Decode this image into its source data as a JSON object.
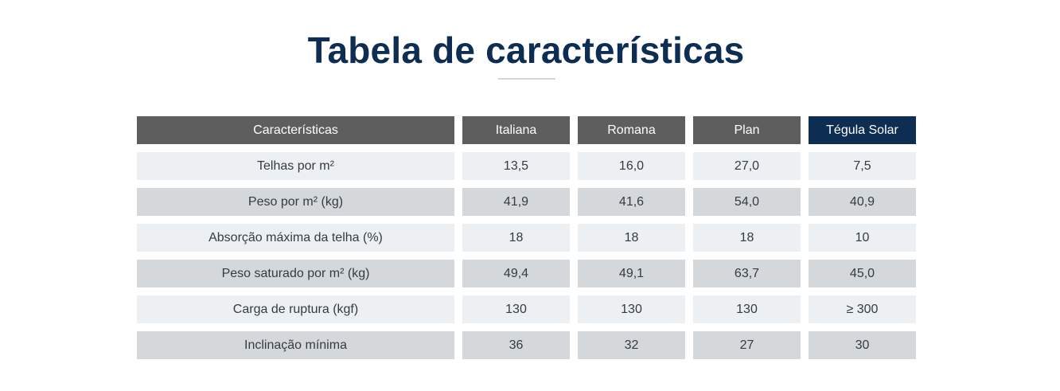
{
  "page": {
    "title": "Tabela de características"
  },
  "table": {
    "columns": [
      "Características",
      "Italiana",
      "Romana",
      "Plan",
      "Tégula Solar"
    ],
    "rows": [
      [
        "Telhas por m²",
        "13,5",
        "16,0",
        "27,0",
        "7,5"
      ],
      [
        "Peso por m² (kg)",
        "41,9",
        "41,6",
        "54,0",
        "40,9"
      ],
      [
        "Absorção máxima da telha (%)",
        "18",
        "18",
        "18",
        "10"
      ],
      [
        "Peso saturado por m² (kg)",
        "49,4",
        "49,1",
        "63,7",
        "45,0"
      ],
      [
        "Carga de ruptura (kgf)",
        "130",
        "130",
        "130",
        "≥ 300"
      ],
      [
        "Inclinação mínima",
        "36",
        "32",
        "27",
        "30"
      ]
    ]
  },
  "colors": {
    "title": "#0e2d52",
    "header_bg": "#5e5e5e",
    "header_accent_bg": "#0e2d52",
    "row_light": "#edf0f3",
    "row_dark": "#d5d8da"
  }
}
